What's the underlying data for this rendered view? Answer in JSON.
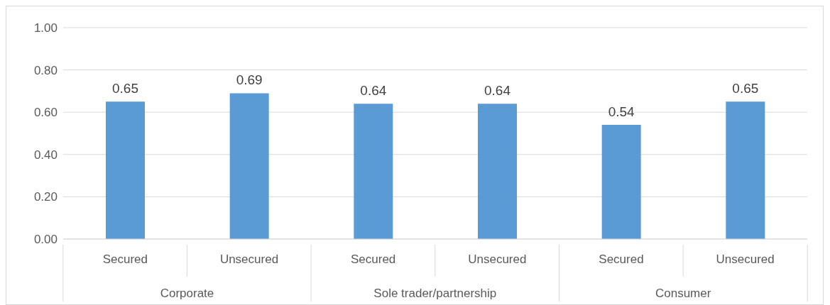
{
  "chart_data": {
    "type": "bar",
    "categories": [
      "Secured",
      "Unsecured",
      "Secured",
      "Unsecured",
      "Secured",
      "Unsecured"
    ],
    "values": [
      0.65,
      0.69,
      0.64,
      0.64,
      0.54,
      0.65
    ],
    "color": "#5b9bd5",
    "annotations": [
      "Corporate",
      "Sole trader/partnership",
      "Consumer"
    ],
    "ylim": [
      0,
      1
    ],
    "yticks": [
      {
        "value": 0,
        "label": "0.00"
      },
      {
        "value": 0.2,
        "label": "0.20"
      },
      {
        "value": 0.4,
        "label": "0.40"
      },
      {
        "value": 0.6,
        "label": "0.60"
      },
      {
        "value": 0.8,
        "label": "0.80"
      },
      {
        "value": 1,
        "label": "1.00"
      }
    ],
    "grid": "y",
    "data_labels": true
  }
}
